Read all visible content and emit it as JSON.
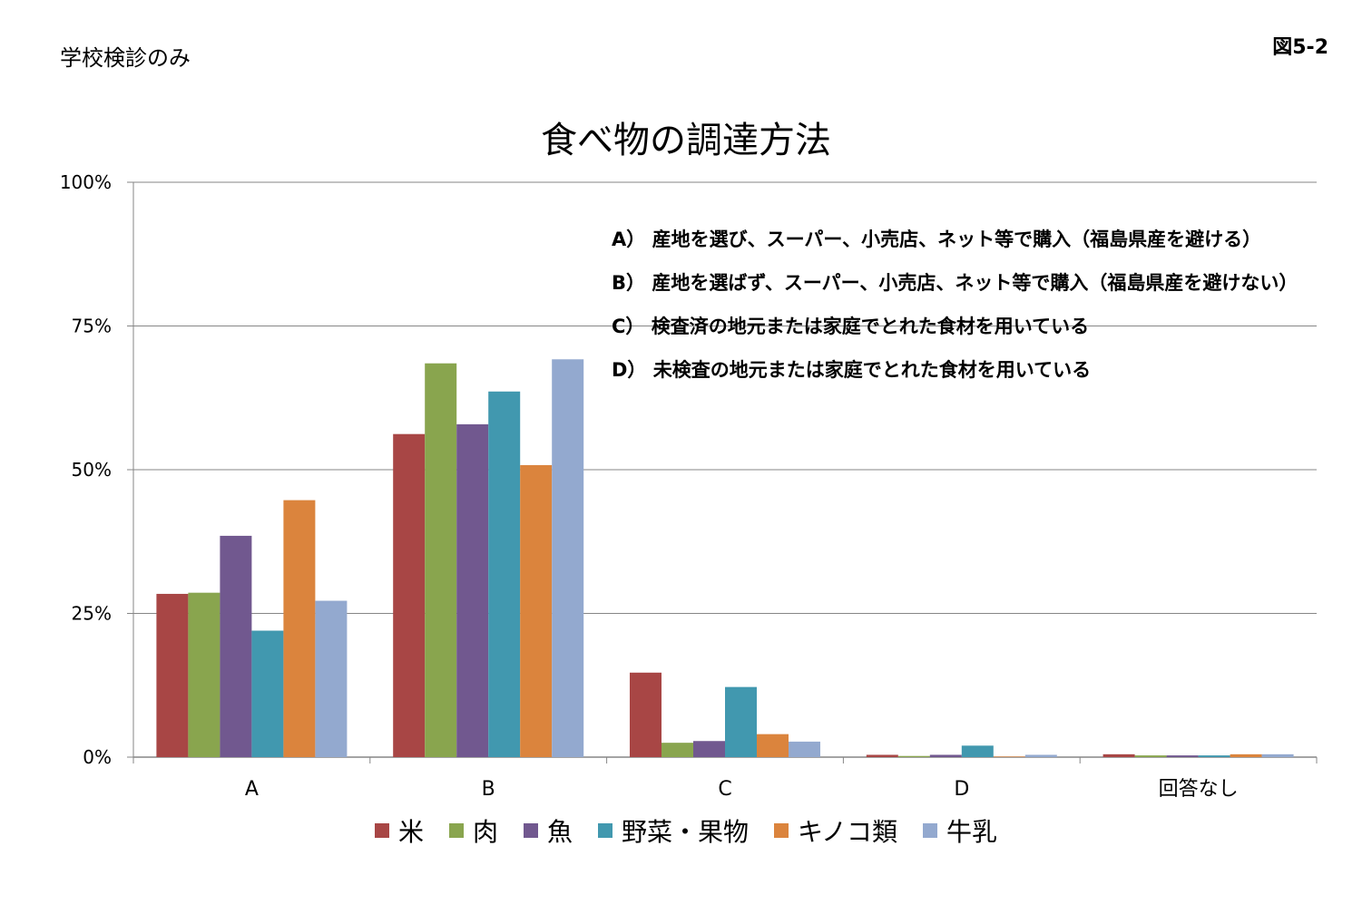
{
  "header": {
    "subtitle": "学校検診のみ",
    "figure_number": "図5-2"
  },
  "notes": [
    "A） 産地を選び、スーパー、小売店、ネット等で購入（福島県産を避ける）",
    "B） 産地を選ばず、スーパー、小売店、ネット等で購入（福島県産を避けない）",
    "C） 検査済の地元または家庭でとれた食材を用いている",
    "D） 未検査の地元または家庭でとれた食材を用いている"
  ],
  "colors": {
    "grid": "#868686",
    "axis": "#868686"
  },
  "chart_data": {
    "type": "bar",
    "title": "食べ物の調達方法",
    "xlabel": "",
    "ylabel": "",
    "ylim": [
      0,
      100
    ],
    "y_ticks": [
      "0%",
      "25%",
      "50%",
      "75%",
      "100%"
    ],
    "y_tick_values": [
      0,
      25,
      50,
      75,
      100
    ],
    "grid": true,
    "legend_position": "bottom",
    "categories": [
      "A",
      "B",
      "C",
      "D",
      "回答なし"
    ],
    "series": [
      {
        "name": "米",
        "color": "#A84645",
        "values": [
          28.4,
          56.2,
          14.7,
          0.4,
          0.5
        ]
      },
      {
        "name": "肉",
        "color": "#89A54E",
        "values": [
          28.6,
          68.5,
          2.5,
          0.2,
          0.3
        ]
      },
      {
        "name": "魚",
        "color": "#71588F",
        "values": [
          38.5,
          57.9,
          2.8,
          0.4,
          0.3
        ]
      },
      {
        "name": "野菜・果物",
        "color": "#4198AF",
        "values": [
          22.0,
          63.6,
          12.2,
          2.0,
          0.3
        ]
      },
      {
        "name": "キノコ類",
        "color": "#DB843D",
        "values": [
          44.7,
          50.8,
          4.0,
          0.1,
          0.5
        ]
      },
      {
        "name": "牛乳",
        "color": "#93A9CF",
        "values": [
          27.2,
          69.2,
          2.7,
          0.4,
          0.5
        ]
      }
    ]
  }
}
